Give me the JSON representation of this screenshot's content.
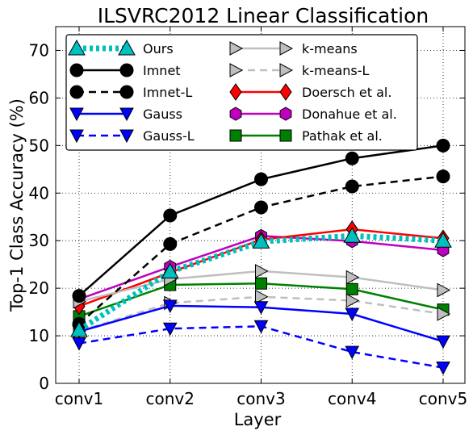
{
  "chart_data": {
    "type": "line",
    "title": "ILSVRC2012 Linear Classification",
    "xlabel": "Layer",
    "ylabel": "Top-1 Class Accuracy (%)",
    "categories": [
      "conv1",
      "conv2",
      "conv3",
      "conv4",
      "conv5"
    ],
    "ylim": [
      0,
      75
    ],
    "yticks": [
      "0",
      "10",
      "20",
      "30",
      "40",
      "50",
      "60",
      "70"
    ],
    "grid": true,
    "legend_position": "top-left",
    "legend_columns": 2,
    "series": [
      {
        "name": "Ours",
        "values": [
          11.2,
          23.5,
          29.8,
          31.0,
          30.0
        ],
        "color": "#00bfbf",
        "dash": "dotted",
        "marker": "triangle-up"
      },
      {
        "name": "Imnet",
        "values": [
          18.4,
          35.3,
          42.9,
          47.3,
          50.0
        ],
        "color": "#000000",
        "dash": "solid",
        "marker": "circle"
      },
      {
        "name": "Imnet-L",
        "values": [
          12.5,
          29.3,
          37.0,
          41.4,
          43.5
        ],
        "color": "#000000",
        "dash": "dashed",
        "marker": "circle"
      },
      {
        "name": "Gauss",
        "values": [
          10.9,
          16.3,
          16.0,
          14.6,
          8.8
        ],
        "color": "#0000ff",
        "dash": "solid",
        "marker": "triangle-down"
      },
      {
        "name": "Gauss-L",
        "values": [
          8.4,
          11.5,
          12.0,
          6.6,
          3.3
        ],
        "color": "#0000ff",
        "dash": "dashed",
        "marker": "triangle-down"
      },
      {
        "name": "k-means",
        "values": [
          17.2,
          21.9,
          23.6,
          22.3,
          19.6
        ],
        "color": "#bfbfbf",
        "dash": "solid",
        "marker": "triangle-right"
      },
      {
        "name": "k-means-L",
        "values": [
          11.0,
          16.9,
          18.2,
          17.4,
          14.6
        ],
        "color": "#bfbfbf",
        "dash": "dashed",
        "marker": "triangle-right"
      },
      {
        "name": "Doersch et al.",
        "values": [
          16.2,
          23.3,
          30.2,
          32.4,
          30.5
        ],
        "color": "#ff0000",
        "dash": "solid",
        "marker": "diamond"
      },
      {
        "name": "Donahue et al.",
        "values": [
          17.7,
          24.5,
          31.0,
          29.9,
          28.0
        ],
        "color": "#bf00bf",
        "dash": "solid",
        "marker": "hexagon"
      },
      {
        "name": "Pathak et al.",
        "values": [
          14.1,
          20.7,
          21.0,
          19.8,
          15.5
        ],
        "color": "#008000",
        "dash": "solid",
        "marker": "square"
      }
    ]
  }
}
